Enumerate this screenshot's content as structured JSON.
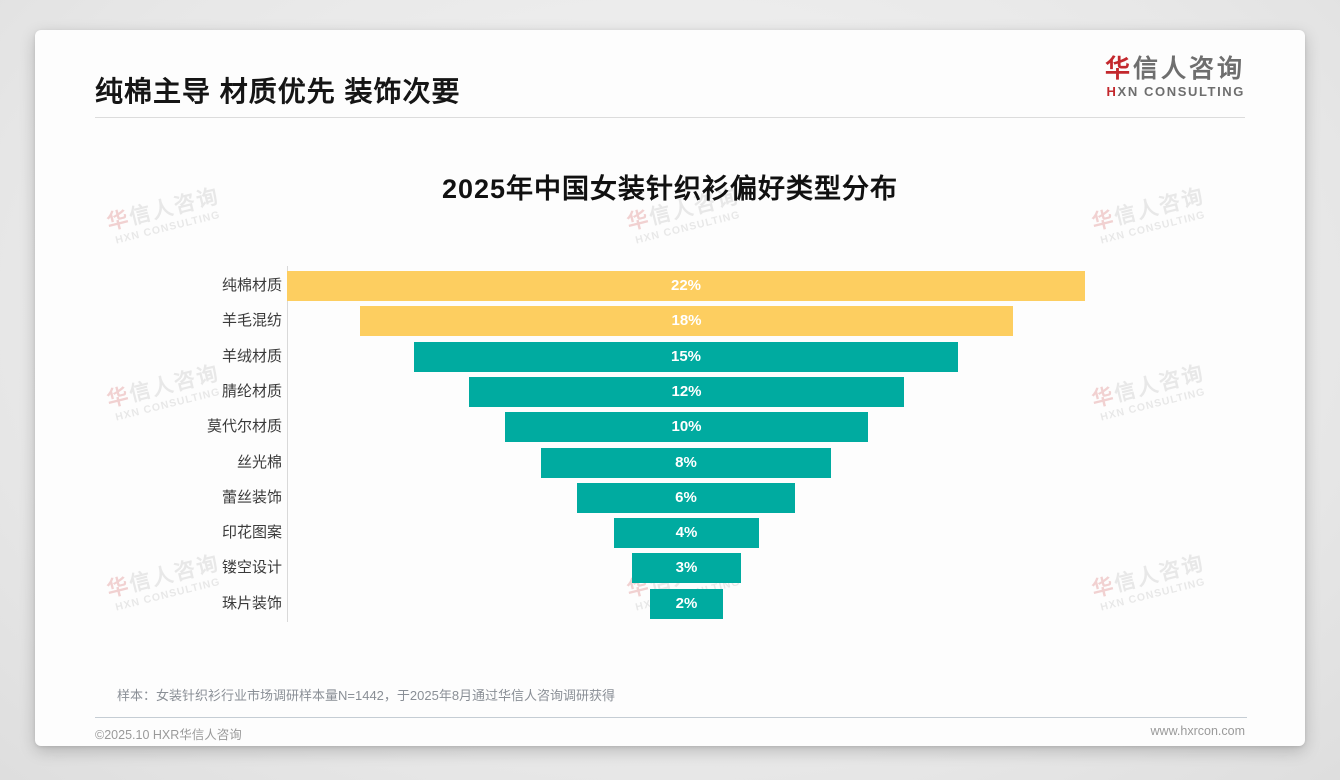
{
  "page": {
    "slide_title": "纯棉主导 材质优先 装饰次要",
    "logo": {
      "zh_first": "华",
      "zh_rest": "信人咨询",
      "en_first": "H",
      "en_rest": "XN CONSULTING"
    },
    "watermark": {
      "zh_first": "华",
      "zh_rest": "信人咨询",
      "en": "HXN CONSULTING"
    },
    "sample_note": "样本：女装针织衫行业市场调研样本量N=1442，于2025年8月通过华信人咨询调研获得",
    "footer_left": "©2025.10 HXR华信人咨询",
    "footer_right": "www.hxrcon.com"
  },
  "colors": {
    "bar_yellow": "#FDCE60",
    "bar_teal": "#00ABA0",
    "logo_red": "#C3282D",
    "value_label_text": "#FFFFFF"
  },
  "chart_data": {
    "type": "bar",
    "orientation": "horizontal-centered-funnel",
    "title": "2025年中国女装针织衫偏好类型分布",
    "categories": [
      "纯棉材质",
      "羊毛混纺",
      "羊绒材质",
      "腈纶材质",
      "莫代尔材质",
      "丝光棉",
      "蕾丝装饰",
      "印花图案",
      "镂空设计",
      "珠片装饰"
    ],
    "values": [
      22,
      18,
      15,
      12,
      10,
      8,
      6,
      4,
      3,
      2
    ],
    "value_labels": [
      "22%",
      "18%",
      "15%",
      "12%",
      "10%",
      "8%",
      "6%",
      "4%",
      "3%",
      "2%"
    ],
    "bar_colors": [
      "#FDCE60",
      "#FDCE60",
      "#00ABA0",
      "#00ABA0",
      "#00ABA0",
      "#00ABA0",
      "#00ABA0",
      "#00ABA0",
      "#00ABA0",
      "#00ABA0"
    ],
    "xlabel": "",
    "ylabel": "",
    "xlim": [
      0,
      22
    ],
    "grid": false,
    "legend": false
  }
}
